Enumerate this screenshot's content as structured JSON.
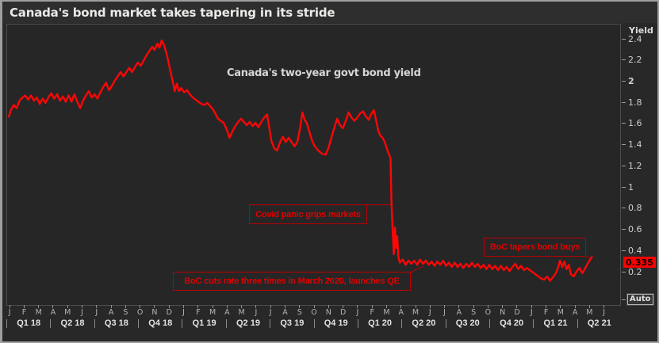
{
  "window": {
    "title": "Canada's bond market takes tapering in its stride"
  },
  "colors": {
    "line_red": "#ff0606",
    "annotation_red": "#e00000",
    "badge_red": "#fb0000",
    "background": "#262626",
    "text_light": "#eaeae8"
  },
  "chart_data": {
    "type": "line",
    "title": "Canada's bond market takes tapering in its stride",
    "note": "Canada's two-year govt bond yield",
    "yaxis": {
      "label": "Yield",
      "ticks": [
        "2.4",
        "2.2",
        "2",
        "1.8",
        "1.6",
        "1.4",
        "1.2",
        "1",
        "0.8",
        "0.6",
        "0.4",
        "0.2"
      ],
      "ylim": [
        0.05,
        2.45
      ],
      "last_price": "0.335",
      "auto_button": "Auto"
    },
    "xaxis": {
      "months": [
        "J",
        "F",
        "M",
        "A",
        "M",
        "J",
        "J",
        "A",
        "S",
        "O",
        "N",
        "D",
        "J",
        "F",
        "M",
        "A",
        "M",
        "J",
        "J",
        "A",
        "S",
        "O",
        "N",
        "D",
        "J",
        "F",
        "M",
        "A",
        "M",
        "J",
        "J",
        "A",
        "S",
        "O",
        "N",
        "D",
        "J",
        "F",
        "M",
        "A",
        "M",
        "J"
      ],
      "quarters": [
        "Q1 18",
        "Q2 18",
        "Q3 18",
        "Q4 18",
        "Q1 19",
        "Q2 19",
        "Q3 19",
        "Q4 19",
        "Q1 20",
        "Q2 20",
        "Q3 20",
        "Q4 20",
        "Q1 21",
        "Q2 21"
      ]
    },
    "annotations": [
      {
        "text": "Covid panic grips markets"
      },
      {
        "text": "BoC cuts rate three times in March 2020, launches QE"
      },
      {
        "text": "BoC tapers bond buys"
      }
    ],
    "series": [
      {
        "name": "Canada two-year govt bond yield",
        "color": "#ff0606",
        "x_unit": "months since Jan 2018",
        "y_unit": "percent",
        "points": [
          [
            0,
            1.66
          ],
          [
            0.15,
            1.72
          ],
          [
            0.35,
            1.77
          ],
          [
            0.55,
            1.74
          ],
          [
            0.75,
            1.81
          ],
          [
            0.95,
            1.84
          ],
          [
            1.15,
            1.86
          ],
          [
            1.35,
            1.82
          ],
          [
            1.55,
            1.86
          ],
          [
            1.75,
            1.81
          ],
          [
            1.95,
            1.84
          ],
          [
            2.15,
            1.78
          ],
          [
            2.35,
            1.83
          ],
          [
            2.55,
            1.79
          ],
          [
            2.75,
            1.84
          ],
          [
            2.95,
            1.88
          ],
          [
            3.15,
            1.83
          ],
          [
            3.35,
            1.87
          ],
          [
            3.55,
            1.81
          ],
          [
            3.75,
            1.85
          ],
          [
            3.95,
            1.8
          ],
          [
            4.15,
            1.86
          ],
          [
            4.35,
            1.8
          ],
          [
            4.55,
            1.87
          ],
          [
            4.75,
            1.8
          ],
          [
            4.95,
            1.74
          ],
          [
            5.15,
            1.81
          ],
          [
            5.35,
            1.86
          ],
          [
            5.55,
            1.9
          ],
          [
            5.75,
            1.84
          ],
          [
            5.95,
            1.87
          ],
          [
            6.15,
            1.83
          ],
          [
            6.35,
            1.89
          ],
          [
            6.55,
            1.94
          ],
          [
            6.75,
            1.98
          ],
          [
            6.95,
            1.91
          ],
          [
            7.15,
            1.95
          ],
          [
            7.35,
            2.0
          ],
          [
            7.55,
            2.04
          ],
          [
            7.75,
            2.08
          ],
          [
            7.95,
            2.04
          ],
          [
            8.15,
            2.08
          ],
          [
            8.35,
            2.12
          ],
          [
            8.55,
            2.08
          ],
          [
            8.75,
            2.13
          ],
          [
            8.95,
            2.17
          ],
          [
            9.15,
            2.14
          ],
          [
            9.35,
            2.19
          ],
          [
            9.55,
            2.24
          ],
          [
            9.75,
            2.28
          ],
          [
            9.95,
            2.32
          ],
          [
            10.1,
            2.29
          ],
          [
            10.3,
            2.35
          ],
          [
            10.45,
            2.31
          ],
          [
            10.6,
            2.38
          ],
          [
            10.75,
            2.34
          ],
          [
            10.9,
            2.27
          ],
          [
            11.05,
            2.19
          ],
          [
            11.2,
            2.09
          ],
          [
            11.35,
            2.0
          ],
          [
            11.5,
            1.9
          ],
          [
            11.65,
            1.97
          ],
          [
            11.8,
            1.9
          ],
          [
            11.95,
            1.93
          ],
          [
            12.15,
            1.89
          ],
          [
            12.35,
            1.91
          ],
          [
            12.55,
            1.87
          ],
          [
            12.75,
            1.84
          ],
          [
            12.95,
            1.82
          ],
          [
            13.15,
            1.8
          ],
          [
            13.35,
            1.78
          ],
          [
            13.55,
            1.77
          ],
          [
            13.75,
            1.79
          ],
          [
            13.95,
            1.76
          ],
          [
            14.15,
            1.73
          ],
          [
            14.35,
            1.68
          ],
          [
            14.5,
            1.64
          ],
          [
            14.7,
            1.62
          ],
          [
            14.9,
            1.6
          ],
          [
            15.1,
            1.54
          ],
          [
            15.3,
            1.46
          ],
          [
            15.5,
            1.52
          ],
          [
            15.7,
            1.57
          ],
          [
            15.9,
            1.61
          ],
          [
            16.1,
            1.64
          ],
          [
            16.3,
            1.61
          ],
          [
            16.5,
            1.58
          ],
          [
            16.7,
            1.61
          ],
          [
            16.9,
            1.57
          ],
          [
            17.1,
            1.6
          ],
          [
            17.3,
            1.56
          ],
          [
            17.5,
            1.61
          ],
          [
            17.7,
            1.65
          ],
          [
            17.9,
            1.68
          ],
          [
            18.05,
            1.56
          ],
          [
            18.2,
            1.43
          ],
          [
            18.4,
            1.36
          ],
          [
            18.6,
            1.34
          ],
          [
            18.8,
            1.42
          ],
          [
            19.0,
            1.47
          ],
          [
            19.2,
            1.42
          ],
          [
            19.4,
            1.46
          ],
          [
            19.6,
            1.42
          ],
          [
            19.8,
            1.38
          ],
          [
            20.0,
            1.42
          ],
          [
            20.2,
            1.56
          ],
          [
            20.35,
            1.7
          ],
          [
            20.5,
            1.63
          ],
          [
            20.65,
            1.6
          ],
          [
            20.8,
            1.53
          ],
          [
            21.0,
            1.44
          ],
          [
            21.2,
            1.38
          ],
          [
            21.45,
            1.34
          ],
          [
            21.7,
            1.31
          ],
          [
            21.95,
            1.3
          ],
          [
            22.15,
            1.36
          ],
          [
            22.35,
            1.46
          ],
          [
            22.55,
            1.55
          ],
          [
            22.75,
            1.64
          ],
          [
            22.95,
            1.58
          ],
          [
            23.15,
            1.55
          ],
          [
            23.35,
            1.62
          ],
          [
            23.55,
            1.7
          ],
          [
            23.75,
            1.65
          ],
          [
            23.95,
            1.62
          ],
          [
            24.15,
            1.65
          ],
          [
            24.35,
            1.69
          ],
          [
            24.55,
            1.71
          ],
          [
            24.75,
            1.66
          ],
          [
            24.95,
            1.63
          ],
          [
            25.1,
            1.68
          ],
          [
            25.3,
            1.72
          ],
          [
            25.45,
            1.63
          ],
          [
            25.6,
            1.53
          ],
          [
            25.75,
            1.48
          ],
          [
            25.9,
            1.46
          ],
          [
            26.05,
            1.42
          ],
          [
            26.2,
            1.36
          ],
          [
            26.35,
            1.3
          ],
          [
            26.45,
            1.27
          ],
          [
            26.52,
            0.84
          ],
          [
            26.6,
            0.58
          ],
          [
            26.68,
            0.36
          ],
          [
            26.76,
            0.61
          ],
          [
            26.84,
            0.42
          ],
          [
            26.92,
            0.53
          ],
          [
            27.0,
            0.33
          ],
          [
            27.1,
            0.28
          ],
          [
            27.3,
            0.31
          ],
          [
            27.5,
            0.26
          ],
          [
            27.7,
            0.3
          ],
          [
            27.9,
            0.27
          ],
          [
            28.1,
            0.3
          ],
          [
            28.3,
            0.26
          ],
          [
            28.5,
            0.31
          ],
          [
            28.7,
            0.27
          ],
          [
            28.9,
            0.3
          ],
          [
            29.1,
            0.26
          ],
          [
            29.3,
            0.29
          ],
          [
            29.5,
            0.25
          ],
          [
            29.7,
            0.29
          ],
          [
            29.9,
            0.26
          ],
          [
            30.1,
            0.3
          ],
          [
            30.3,
            0.25
          ],
          [
            30.5,
            0.28
          ],
          [
            30.7,
            0.24
          ],
          [
            30.9,
            0.28
          ],
          [
            31.1,
            0.24
          ],
          [
            31.3,
            0.27
          ],
          [
            31.5,
            0.23
          ],
          [
            31.7,
            0.27
          ],
          [
            31.9,
            0.24
          ],
          [
            32.1,
            0.28
          ],
          [
            32.3,
            0.24
          ],
          [
            32.5,
            0.27
          ],
          [
            32.7,
            0.23
          ],
          [
            32.9,
            0.26
          ],
          [
            33.1,
            0.22
          ],
          [
            33.3,
            0.26
          ],
          [
            33.5,
            0.22
          ],
          [
            33.7,
            0.25
          ],
          [
            33.9,
            0.21
          ],
          [
            34.1,
            0.25
          ],
          [
            34.3,
            0.21
          ],
          [
            34.5,
            0.24
          ],
          [
            34.7,
            0.2
          ],
          [
            34.9,
            0.24
          ],
          [
            35.1,
            0.27
          ],
          [
            35.3,
            0.22
          ],
          [
            35.5,
            0.25
          ],
          [
            35.7,
            0.21
          ],
          [
            35.9,
            0.23
          ],
          [
            36.1,
            0.21
          ],
          [
            36.3,
            0.19
          ],
          [
            36.5,
            0.17
          ],
          [
            36.7,
            0.15
          ],
          [
            36.9,
            0.13
          ],
          [
            37.1,
            0.12
          ],
          [
            37.3,
            0.15
          ],
          [
            37.5,
            0.11
          ],
          [
            37.7,
            0.14
          ],
          [
            37.9,
            0.18
          ],
          [
            38.05,
            0.23
          ],
          [
            38.2,
            0.3
          ],
          [
            38.35,
            0.24
          ],
          [
            38.5,
            0.29
          ],
          [
            38.65,
            0.22
          ],
          [
            38.8,
            0.26
          ],
          [
            38.95,
            0.17
          ],
          [
            39.15,
            0.15
          ],
          [
            39.35,
            0.2
          ],
          [
            39.55,
            0.23
          ],
          [
            39.75,
            0.18
          ],
          [
            39.95,
            0.23
          ],
          [
            40.15,
            0.28
          ],
          [
            40.4,
            0.335
          ]
        ]
      }
    ]
  }
}
